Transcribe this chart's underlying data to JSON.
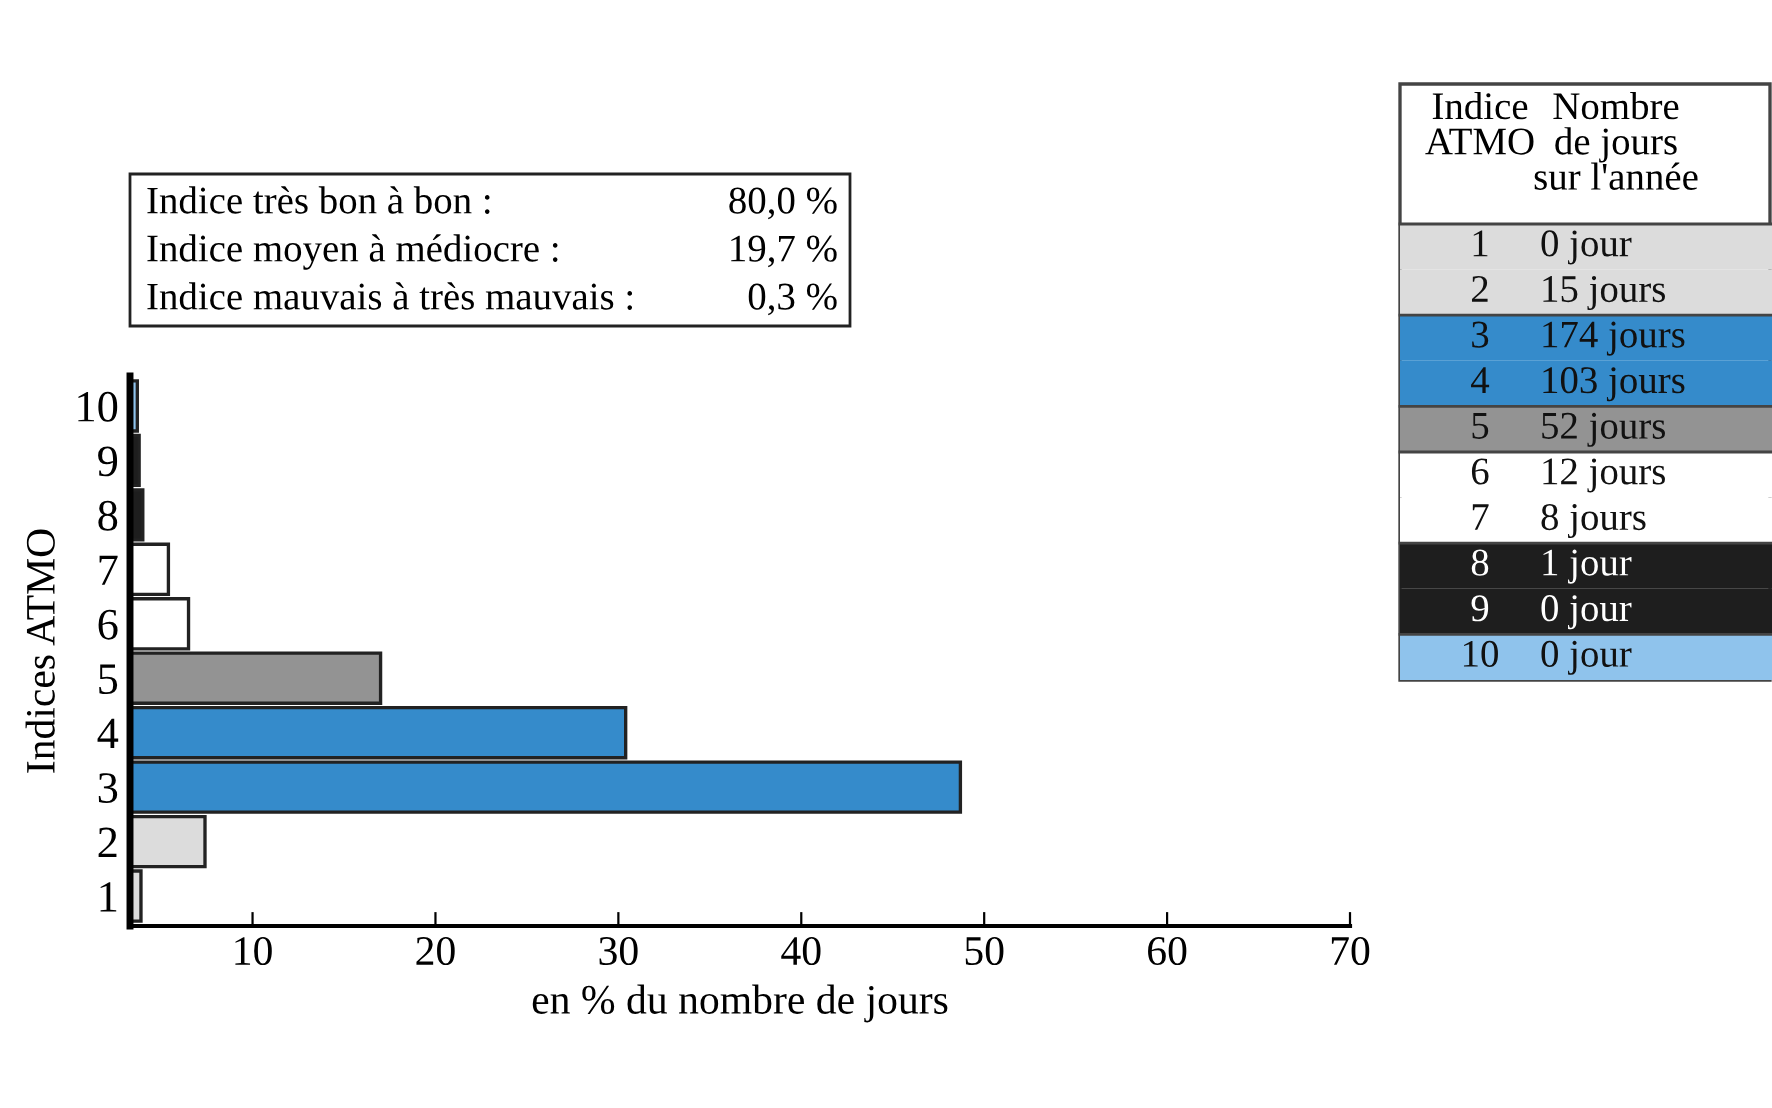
{
  "chart_data": {
    "type": "bar",
    "orientation": "horizontal",
    "categories": [
      "10",
      "9",
      "8",
      "7",
      "6",
      "5",
      "4",
      "3",
      "2",
      "1"
    ],
    "values": [
      0.4,
      0.5,
      0.7,
      2.1,
      3.2,
      13.7,
      27.1,
      45.4,
      4.1,
      0.6
    ],
    "base": [
      3.3,
      3.3,
      3.3,
      3.3,
      3.3,
      3.3,
      3.3,
      3.3,
      3.3,
      3.3
    ],
    "colors": [
      "#8fc3ec",
      "#1e1e1e",
      "#1e1e1e",
      "#ffffff",
      "#ffffff",
      "#939393",
      "#358bcb",
      "#358bcb",
      "#dcdcdc",
      "#dcdcdc"
    ],
    "xlim": [
      3.3,
      70
    ],
    "xticks": [
      10,
      20,
      30,
      40,
      50,
      60,
      70
    ],
    "xlabel": "en % du nombre de jours",
    "ylabel": "Indices ATMO",
    "grid": false,
    "legend": false,
    "annotations": [
      "Indice très bon à bon :",
      "80,0 %",
      "Indice moyen à médiocre :",
      "19,7 %",
      "Indice mauvais à très mauvais :",
      "0,3 %",
      "Indice\nATMO",
      "Nombre\nde jours\nsur l'année",
      "0 jour",
      "15 jours",
      "174 jours",
      "103 jours",
      "52 jours",
      "12 jours",
      "8 jours",
      "1 jour",
      "0 jour",
      "0 jour"
    ]
  }
}
